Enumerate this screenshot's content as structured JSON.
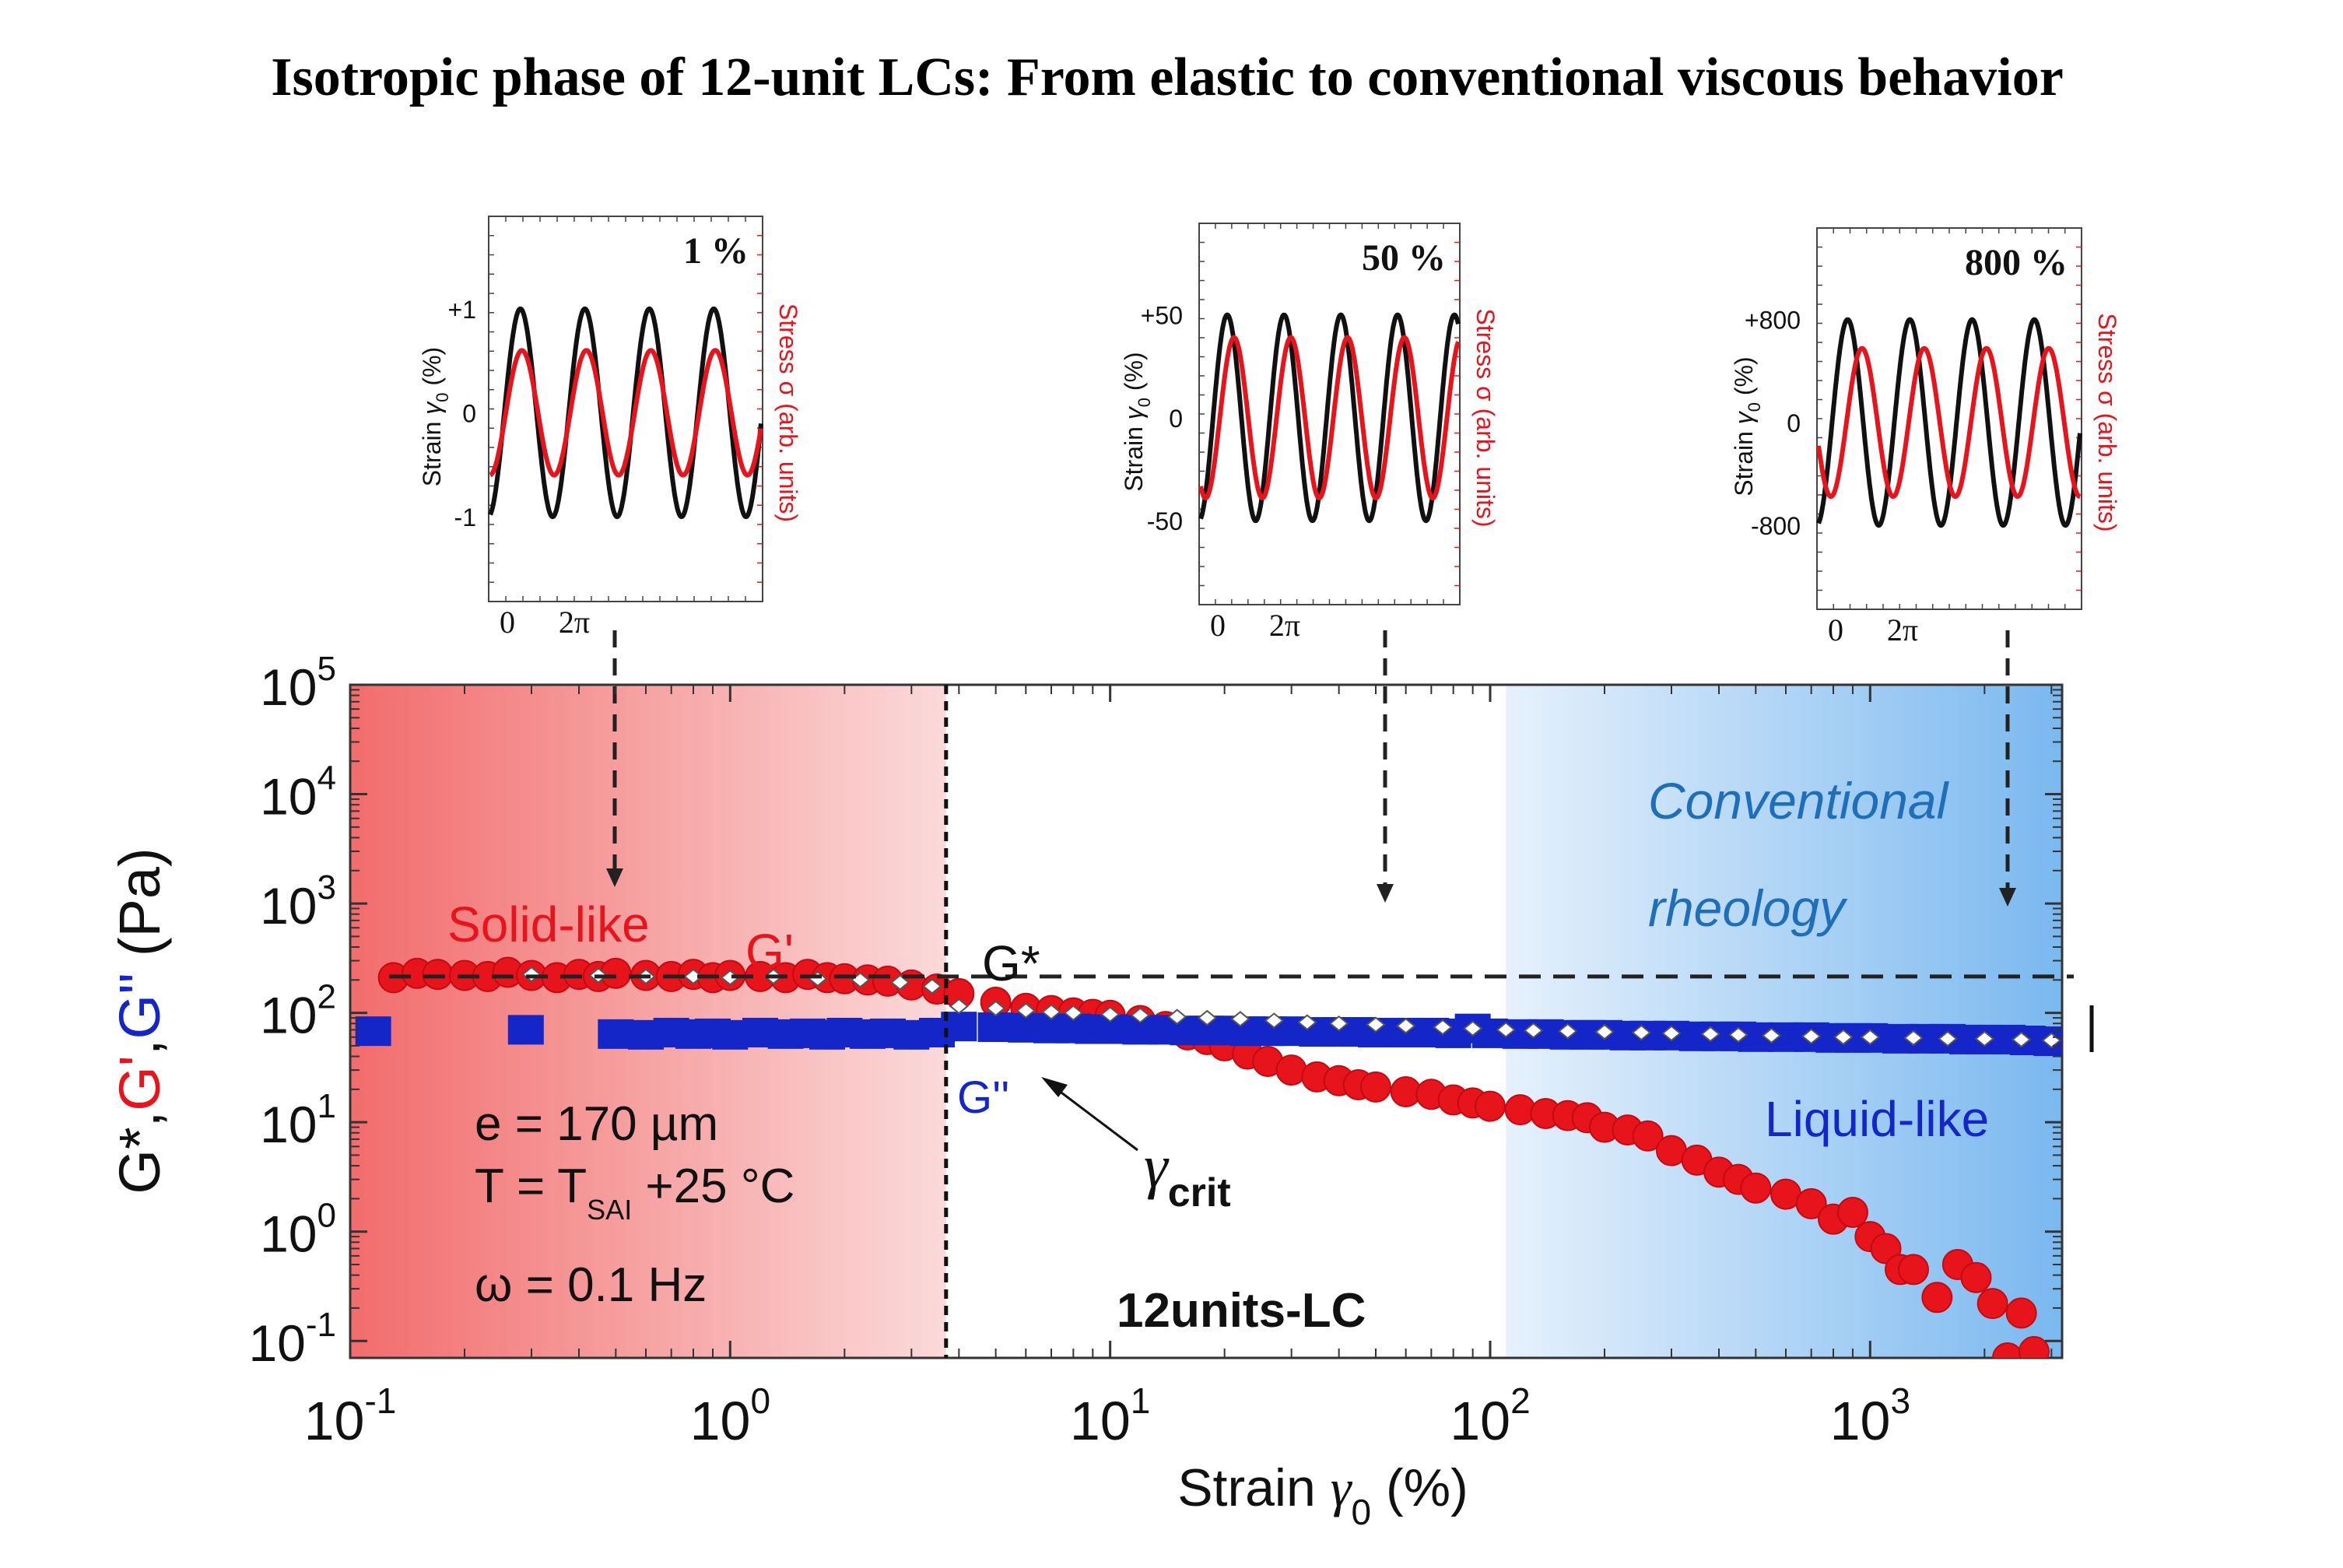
{
  "title": "Isotropic phase of 12-unit LCs: From elastic to conventional viscous behavior",
  "colors": {
    "g_prime": "#e8141b",
    "g_double_prime": "#1426c8",
    "g_star": "#111111",
    "solid_region_start": "#f26c6c",
    "solid_region_end": "#fbdada",
    "liquid_region_start": "#e6f1fc",
    "liquid_region_end": "#7ab8ef",
    "rheology_text": "#1f6fb8"
  },
  "chart_data": [
    {
      "type": "scatter",
      "id": "main",
      "xlabel_prefix": "Strain ",
      "xlabel_symbol": "γ",
      "xlabel_sub": "0",
      "xlabel_suffix": " (%)",
      "ylabel": [
        {
          "text": "G*",
          "color": "#111111"
        },
        {
          "text": ",",
          "color": "#111111"
        },
        {
          "text": "G'",
          "color": "#e8141b"
        },
        {
          "text": ",",
          "color": "#111111"
        },
        {
          "text": "G''",
          "color": "#1426c8"
        },
        {
          "text": " (Pa)",
          "color": "#111111"
        }
      ],
      "xscale": "log",
      "yscale": "log",
      "xlim": [
        0.1,
        3200
      ],
      "ylim": [
        0.07,
        100000
      ],
      "x_ticks": [
        {
          "base": "10",
          "exp": "-1",
          "value": 0.1
        },
        {
          "base": "10",
          "exp": "0",
          "value": 1
        },
        {
          "base": "10",
          "exp": "1",
          "value": 10
        },
        {
          "base": "10",
          "exp": "2",
          "value": 100
        },
        {
          "base": "10",
          "exp": "3",
          "value": 1000
        }
      ],
      "y_ticks": [
        {
          "base": "10",
          "exp": "-1",
          "value": 0.1
        },
        {
          "base": "10",
          "exp": "0",
          "value": 1
        },
        {
          "base": "10",
          "exp": "1",
          "value": 10
        },
        {
          "base": "10",
          "exp": "2",
          "value": 100
        },
        {
          "base": "10",
          "exp": "3",
          "value": 1000
        },
        {
          "base": "10",
          "exp": "4",
          "value": 10000
        },
        {
          "base": "10",
          "exp": "5",
          "value": 100000
        }
      ],
      "regions": [
        {
          "name": "solid-like region",
          "x_range": [
            0.1,
            3.7
          ]
        },
        {
          "name": "conventional rheology region",
          "x_range": [
            110,
            3200
          ]
        }
      ],
      "critical_strain": 3.7,
      "g_star_level": 215,
      "series": [
        {
          "name": "G'",
          "marker": "circle",
          "color": "#e8141b",
          "x": [
            0.13,
            0.15,
            0.17,
            0.2,
            0.23,
            0.26,
            0.3,
            0.35,
            0.4,
            0.45,
            0.5,
            0.6,
            0.7,
            0.8,
            0.9,
            1.0,
            1.2,
            1.4,
            1.6,
            1.8,
            2.0,
            2.3,
            2.6,
            3.0,
            3.5,
            4.0,
            5,
            6,
            7,
            8,
            9,
            10,
            12,
            14,
            16,
            18,
            20,
            23,
            26,
            30,
            35,
            40,
            45,
            50,
            60,
            70,
            80,
            90,
            100,
            120,
            140,
            160,
            180,
            200,
            230,
            260,
            300,
            350,
            400,
            450,
            500,
            600,
            700,
            800,
            900,
            1000,
            1100,
            1200,
            1300,
            1500,
            1700,
            1900,
            2100,
            2300,
            2500,
            2700
          ],
          "y": [
            210,
            230,
            225,
            220,
            215,
            235,
            220,
            210,
            225,
            215,
            230,
            220,
            215,
            225,
            210,
            220,
            215,
            210,
            225,
            210,
            205,
            200,
            195,
            180,
            165,
            150,
            125,
            110,
            105,
            100,
            97,
            95,
            85,
            75,
            63,
            57,
            50,
            42,
            36,
            30,
            26,
            24,
            22,
            21,
            19,
            18,
            16,
            15,
            14,
            13,
            12,
            11.5,
            11,
            9,
            8.5,
            7.5,
            5.5,
            4.5,
            3.5,
            3.0,
            2.5,
            2.2,
            1.8,
            1.3,
            1.5,
            0.9,
            0.7,
            0.45,
            0.45,
            0.25,
            0.5,
            0.38,
            0.22,
            0.07,
            0.18,
            0.08
          ]
        },
        {
          "name": "G''",
          "marker": "square",
          "color": "#1426c8",
          "x": [
            0.115,
            0.29,
            0.5,
            0.6,
            0.7,
            0.8,
            0.9,
            1.0,
            1.2,
            1.4,
            1.6,
            1.8,
            2.0,
            2.3,
            2.6,
            3.0,
            3.5,
            4,
            5,
            6,
            7,
            8,
            9,
            10,
            12,
            14,
            16,
            18,
            20,
            23,
            26,
            30,
            35,
            40,
            45,
            50,
            60,
            70,
            80,
            90,
            100,
            120,
            140,
            160,
            180,
            200,
            230,
            260,
            300,
            350,
            400,
            450,
            500,
            600,
            700,
            800,
            900,
            1000,
            1200,
            1400,
            1600,
            1800,
            2000,
            2300,
            2600,
            3000
          ],
          "y": [
            68,
            70,
            64,
            63,
            66,
            64,
            65,
            63,
            66,
            64,
            65,
            63,
            66,
            64,
            65,
            63,
            66,
            75,
            74,
            73,
            72,
            72,
            71,
            71,
            70,
            70,
            69,
            69,
            69,
            68,
            68,
            68,
            67,
            67,
            67,
            66,
            66,
            66,
            65,
            72,
            65,
            64,
            64,
            63,
            63,
            63,
            62,
            62,
            62,
            61,
            61,
            61,
            60,
            60,
            60,
            59,
            59,
            59,
            58,
            58,
            58,
            57,
            57,
            57,
            56,
            55
          ]
        },
        {
          "name": "G*",
          "marker": "diamond",
          "color": "#ffffff",
          "x": [
            0.3,
            0.45,
            0.6,
            0.8,
            1.0,
            1.3,
            1.7,
            2.2,
            2.8,
            3.4,
            4,
            5,
            6,
            7,
            8,
            10,
            12,
            15,
            18,
            22,
            27,
            33,
            40,
            50,
            60,
            75,
            90,
            110,
            130,
            160,
            200,
            250,
            300,
            380,
            450,
            550,
            700,
            850,
            1000,
            1300,
            1600,
            2000,
            2500,
            3000
          ],
          "y": [
            225,
            220,
            215,
            215,
            210,
            215,
            205,
            200,
            190,
            175,
            115,
            110,
            105,
            102,
            100,
            97,
            95,
            92,
            90,
            88,
            85,
            82,
            80,
            78,
            76,
            74,
            72,
            70,
            69,
            68,
            67,
            66,
            65,
            64,
            63,
            62,
            61,
            60,
            60,
            59,
            58,
            58,
            57,
            56
          ]
        }
      ],
      "annotations": {
        "solid_like": "Solid-like",
        "g_prime_label": "G'",
        "g_star_label": "G*",
        "g_double_prime_label": "G''",
        "gamma_crit_symbol": "γ",
        "gamma_crit_sub": "crit",
        "conventional_line1": "Conventional",
        "conventional_line2": "rheology",
        "liquid_like": "Liquid-like",
        "sample": "12units-LC",
        "thickness": "e = 170 µm",
        "temperature_prefix": "T = T",
        "temperature_sub": "SAI",
        "temperature_suffix": " +25 °C",
        "frequency": "ω = 0.1 Hz"
      }
    },
    {
      "type": "line",
      "id": "inset-1",
      "title": "1 %",
      "left_axis_label_prefix": "Strain ",
      "left_axis_label_symbol": "γ",
      "left_axis_label_sub": "0",
      "left_axis_label_suffix": " (%)",
      "right_axis_label": "Stress σ (arb. units)",
      "y_ticks": [
        "+1",
        "0",
        "-1"
      ],
      "x_ticks": [
        "0",
        "2π"
      ],
      "xlim": [
        0,
        26.4
      ],
      "series": [
        {
          "name": "Strain",
          "color": "#111111",
          "amplitude": 1.0,
          "phase": 0.0
        },
        {
          "name": "Stress",
          "color": "#e8141b",
          "amplitude": 0.6,
          "phase": 0.15
        }
      ]
    },
    {
      "type": "line",
      "id": "inset-50",
      "title": "50 %",
      "left_axis_label_prefix": "Strain ",
      "left_axis_label_symbol": "γ",
      "left_axis_label_sub": "0",
      "left_axis_label_suffix": " (%)",
      "right_axis_label": "Stress σ (arb. units)",
      "y_ticks": [
        "+50",
        "0",
        "-50"
      ],
      "x_ticks": [
        "0",
        "2π"
      ],
      "xlim": [
        0,
        28.5
      ],
      "series": [
        {
          "name": "Strain",
          "color": "#111111",
          "amplitude": 1.0,
          "phase": 0.0
        },
        {
          "name": "Stress",
          "color": "#e8141b",
          "amplitude": 0.78,
          "phase": 0.75
        }
      ]
    },
    {
      "type": "line",
      "id": "inset-800",
      "title": "800 %",
      "left_axis_label_prefix": "Strain ",
      "left_axis_label_symbol": "γ",
      "left_axis_label_sub": "0",
      "left_axis_label_suffix": " (%)",
      "right_axis_label": "Stress σ (arb. units)",
      "y_ticks": [
        "+800",
        "0",
        "-800"
      ],
      "x_ticks": [
        "0",
        "2π"
      ],
      "xlim": [
        0,
        26.4
      ],
      "series": [
        {
          "name": "Strain",
          "color": "#111111",
          "amplitude": 1.0,
          "phase": 0.0
        },
        {
          "name": "Stress",
          "color": "#e8141b",
          "amplitude": 0.72,
          "phase": 1.45
        }
      ]
    }
  ]
}
